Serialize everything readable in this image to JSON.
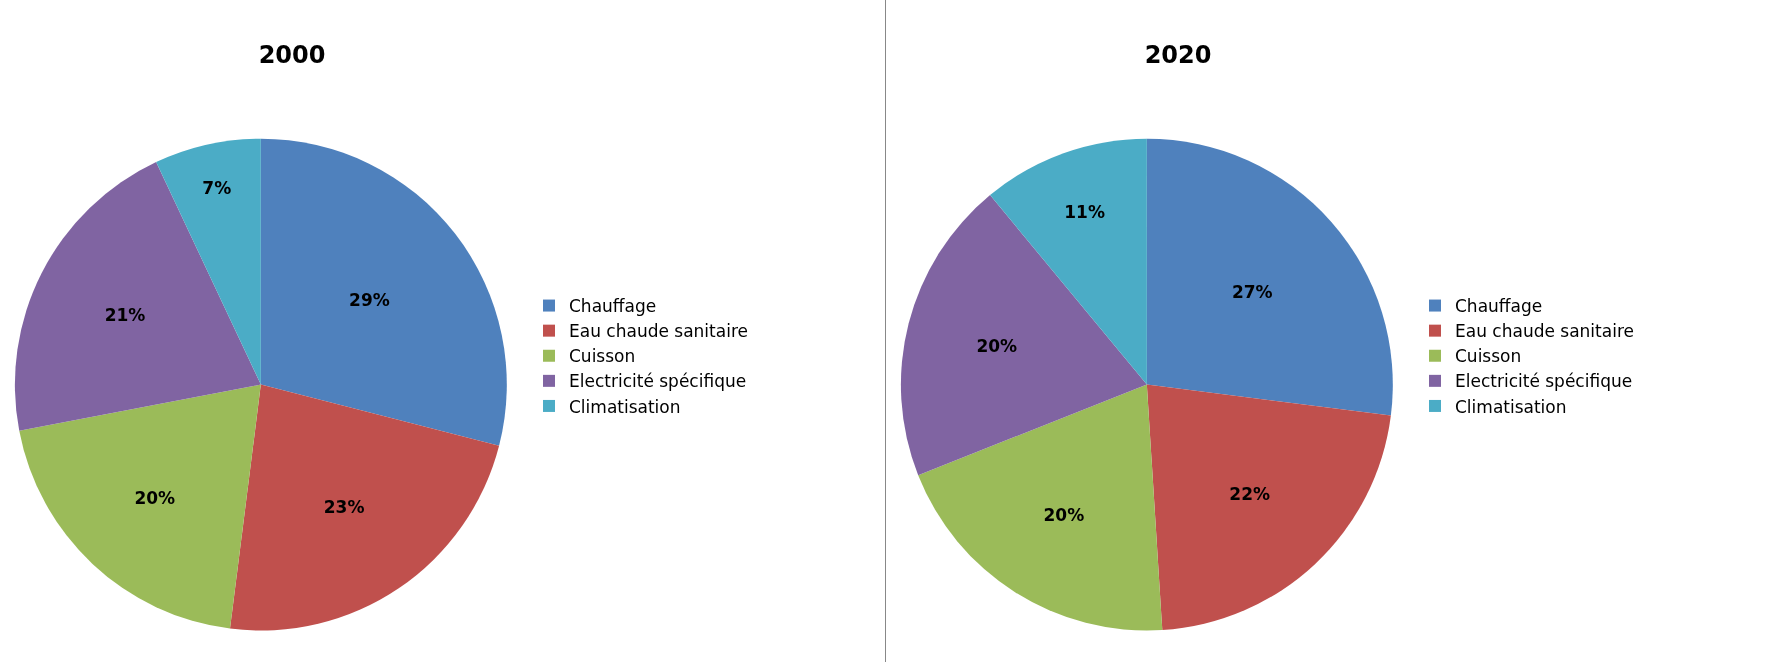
{
  "chart_data": [
    {
      "type": "pie",
      "title": "2000",
      "categories": [
        "Chauffage",
        "Eau chaude sanitaire",
        "Cuisson",
        "Electricité spécifique",
        "Climatisation"
      ],
      "values": [
        29,
        23,
        20,
        21,
        7
      ],
      "value_labels": [
        "29%",
        "23%",
        "20%",
        "21%",
        "7%"
      ],
      "colors": [
        "#4f81bd",
        "#c0504d",
        "#9bbb59",
        "#8064a2",
        "#4bacc6"
      ],
      "legend": "right"
    },
    {
      "type": "pie",
      "title": "2020",
      "categories": [
        "Chauffage",
        "Eau chaude sanitaire",
        "Cuisson",
        "Electricité spécifique",
        "Climatisation"
      ],
      "values": [
        27,
        22,
        20,
        20,
        11
      ],
      "value_labels": [
        "27%",
        "22%",
        "20%",
        "20%",
        "11%"
      ],
      "colors": [
        "#4f81bd",
        "#c0504d",
        "#9bbb59",
        "#8064a2",
        "#4bacc6"
      ],
      "legend": "right"
    }
  ]
}
